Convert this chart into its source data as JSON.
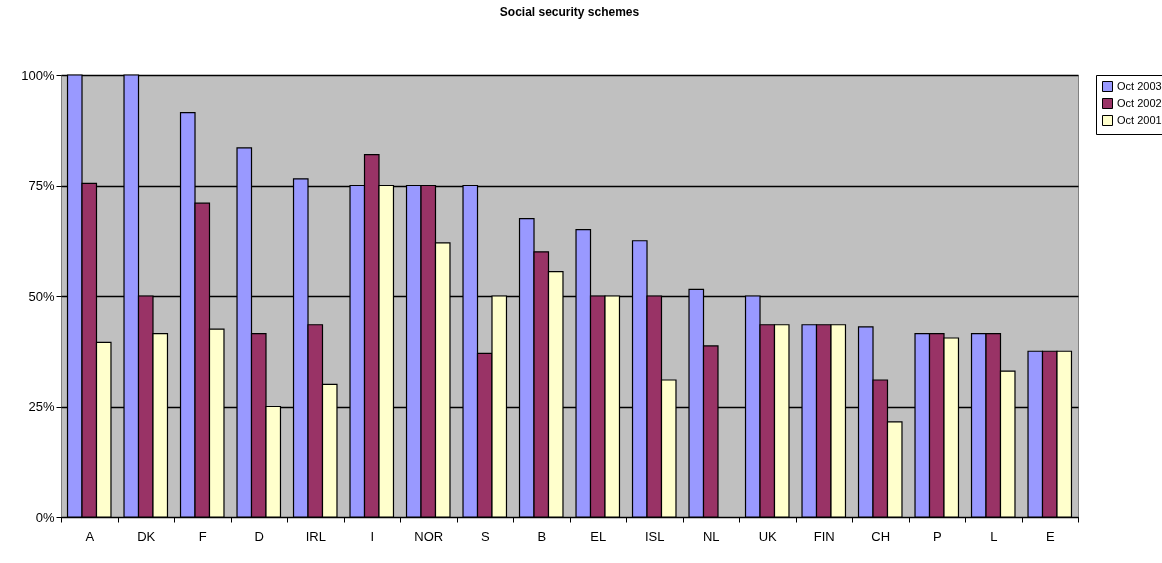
{
  "chart_data": {
    "type": "bar",
    "title": "Social security schemes",
    "categories": [
      "A",
      "DK",
      "F",
      "D",
      "IRL",
      "I",
      "NOR",
      "S",
      "B",
      "EL",
      "ISL",
      "NL",
      "UK",
      "FIN",
      "CH",
      "P",
      "L",
      "E"
    ],
    "series": [
      {
        "name": "Oct 2003",
        "color": "#9999ff",
        "values": [
          100,
          100,
          91.5,
          83.5,
          76.5,
          75,
          75,
          75,
          67.5,
          65,
          62.5,
          51.5,
          50,
          43.5,
          43,
          41.5,
          41.5,
          37.5
        ]
      },
      {
        "name": "Oct 2002",
        "color": "#993366",
        "values": [
          75.5,
          50,
          71,
          41.5,
          43.5,
          82,
          75,
          37,
          60,
          50,
          50,
          38.7,
          43.5,
          43.5,
          31,
          41.5,
          41.5,
          37.5
        ]
      },
      {
        "name": "Oct 2001",
        "color": "#ffffcc",
        "values": [
          39.5,
          41.5,
          42.5,
          25,
          30,
          75,
          62,
          50,
          55.5,
          50,
          31,
          null,
          43.5,
          43.5,
          21.5,
          40.5,
          33,
          37.5
        ]
      }
    ],
    "ylim": [
      0,
      100
    ],
    "yticks": [
      {
        "value": 0,
        "label": "0%"
      },
      {
        "value": 25,
        "label": "25%"
      },
      {
        "value": 50,
        "label": "50%"
      },
      {
        "value": 75,
        "label": "75%"
      },
      {
        "value": 100,
        "label": "100%"
      }
    ],
    "grid": "y",
    "legend": "right"
  }
}
